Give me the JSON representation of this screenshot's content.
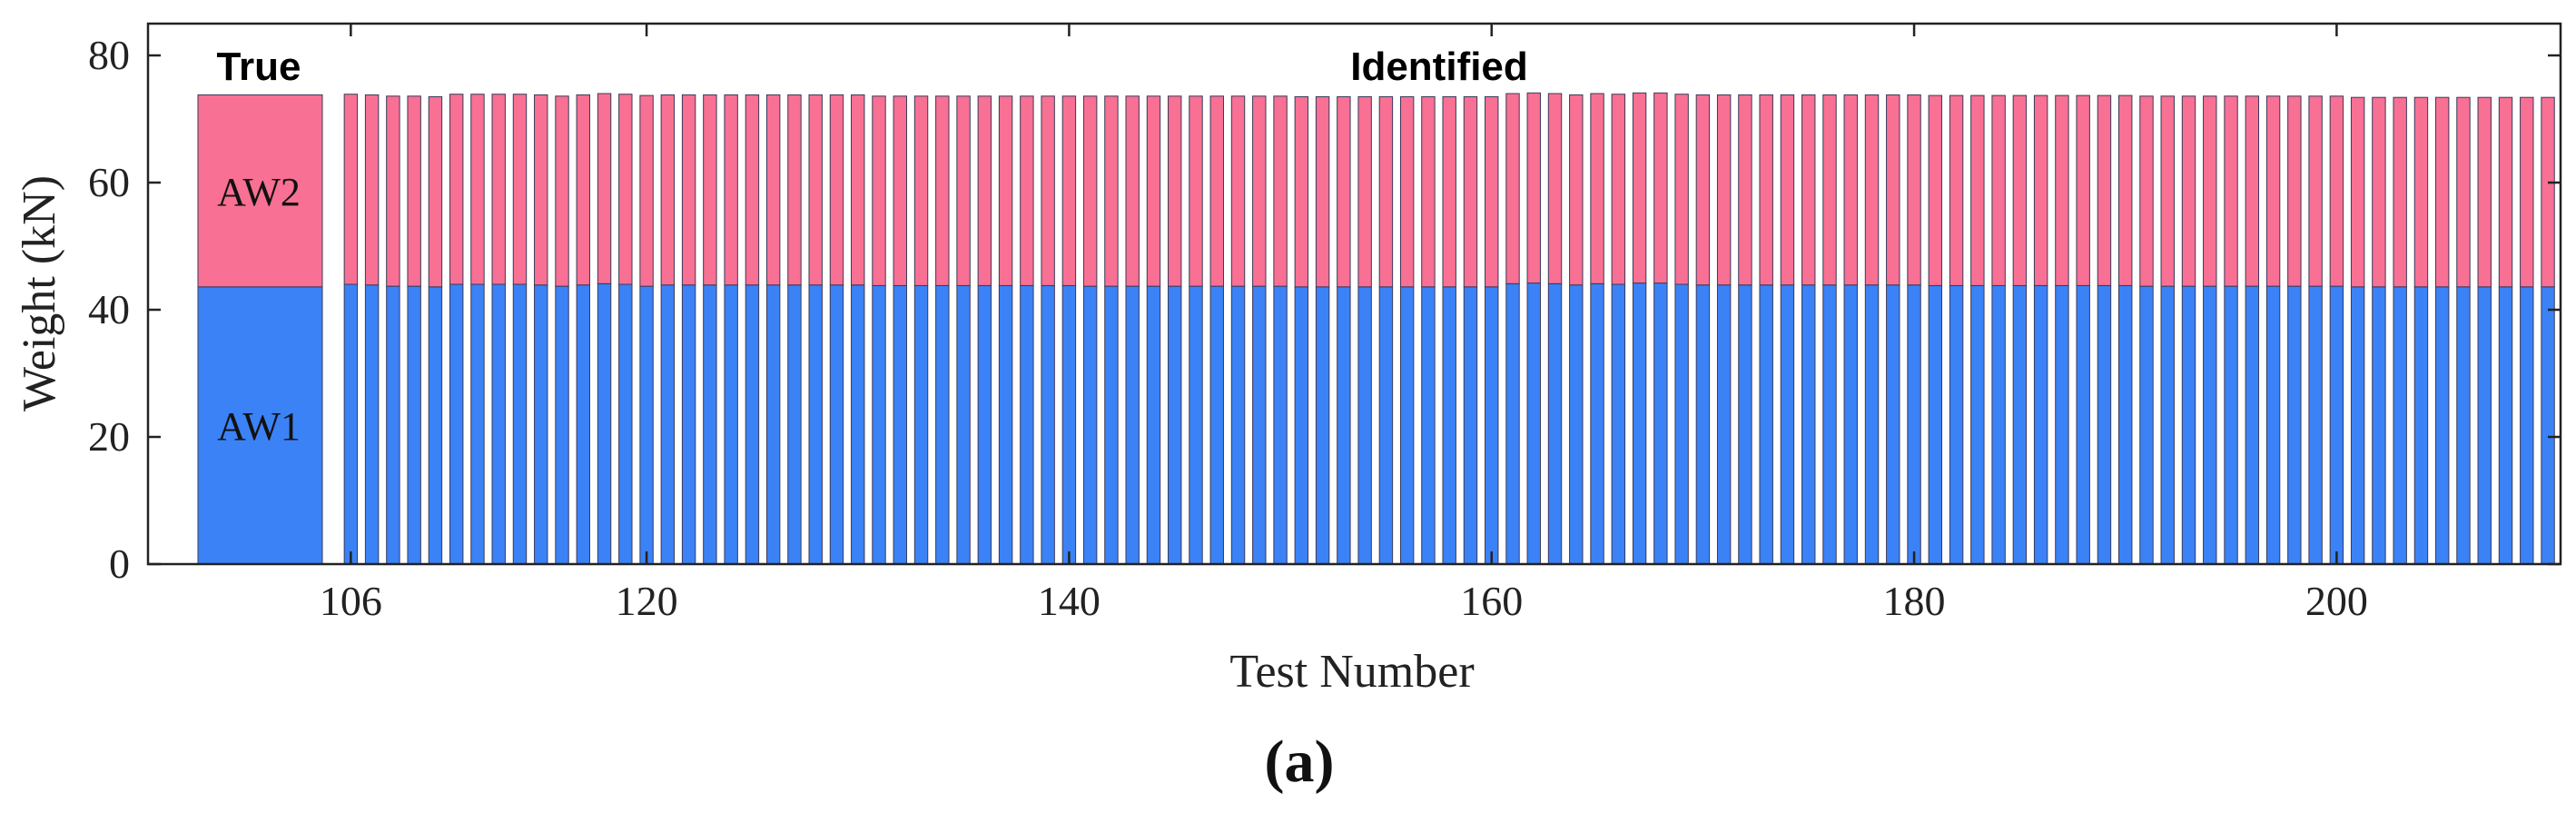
{
  "chart_data": {
    "type": "bar",
    "stacked": true,
    "xlabel": "Test Number",
    "ylabel": "Weight (kN)",
    "caption": "(a)",
    "ylim": [
      0,
      85
    ],
    "yticks": [
      0,
      20,
      40,
      60,
      80
    ],
    "xlim": [
      96.4,
      210.6
    ],
    "xticks": [
      106,
      120,
      140,
      160,
      180,
      200
    ],
    "panel_labels": {
      "true": "True",
      "identified": "Identified"
    },
    "series_labels": {
      "aw1": "AW1",
      "aw2": "AW2"
    },
    "colors": {
      "aw1": "#3b82f6",
      "aw2": "#f87093",
      "edge": "#3a3a5a"
    },
    "true_bar": {
      "aw1": 43.6,
      "total": 73.8
    },
    "identified": {
      "x": [
        106,
        107,
        108,
        109,
        110,
        111,
        112,
        113,
        114,
        115,
        116,
        117,
        118,
        119,
        120,
        121,
        122,
        123,
        124,
        125,
        126,
        127,
        128,
        129,
        130,
        131,
        132,
        133,
        134,
        135,
        136,
        137,
        138,
        139,
        140,
        141,
        142,
        143,
        144,
        145,
        146,
        147,
        148,
        149,
        150,
        151,
        152,
        153,
        154,
        155,
        156,
        157,
        158,
        159,
        160,
        161,
        162,
        163,
        164,
        165,
        166,
        167,
        168,
        169,
        170,
        171,
        172,
        173,
        174,
        175,
        176,
        177,
        178,
        179,
        180,
        181,
        182,
        183,
        184,
        185,
        186,
        187,
        188,
        189,
        190,
        191,
        192,
        193,
        194,
        195,
        196,
        197,
        198,
        199,
        200,
        201,
        202,
        203,
        204,
        205,
        206,
        207,
        208,
        209,
        210
      ],
      "aw1": [
        44.0,
        43.9,
        43.7,
        43.7,
        43.6,
        44.0,
        44.0,
        44.0,
        44.0,
        43.9,
        43.7,
        43.9,
        44.1,
        44.0,
        43.7,
        43.9,
        43.9,
        43.9,
        43.9,
        43.9,
        43.9,
        43.9,
        43.9,
        43.9,
        43.9,
        43.8,
        43.8,
        43.8,
        43.8,
        43.8,
        43.8,
        43.8,
        43.8,
        43.8,
        43.8,
        43.7,
        43.7,
        43.7,
        43.7,
        43.7,
        43.7,
        43.7,
        43.7,
        43.7,
        43.7,
        43.6,
        43.6,
        43.6,
        43.6,
        43.6,
        43.6,
        43.6,
        43.6,
        43.6,
        43.6,
        44.1,
        44.2,
        44.1,
        43.9,
        44.1,
        44.0,
        44.2,
        44.2,
        44.0,
        43.9,
        43.9,
        43.9,
        43.9,
        43.9,
        43.9,
        43.9,
        43.9,
        43.9,
        43.9,
        43.9,
        43.8,
        43.8,
        43.8,
        43.8,
        43.8,
        43.8,
        43.8,
        43.8,
        43.8,
        43.8,
        43.7,
        43.7,
        43.7,
        43.7,
        43.7,
        43.7,
        43.7,
        43.7,
        43.7,
        43.7,
        43.6,
        43.6,
        43.6,
        43.6,
        43.6,
        43.6,
        43.6,
        43.6,
        43.6,
        43.6
      ],
      "total": [
        73.9,
        73.8,
        73.6,
        73.6,
        73.5,
        73.9,
        73.9,
        73.9,
        73.9,
        73.8,
        73.6,
        73.8,
        74.0,
        73.9,
        73.7,
        73.8,
        73.8,
        73.8,
        73.8,
        73.8,
        73.8,
        73.8,
        73.8,
        73.8,
        73.8,
        73.6,
        73.6,
        73.6,
        73.6,
        73.6,
        73.6,
        73.6,
        73.6,
        73.6,
        73.6,
        73.6,
        73.6,
        73.6,
        73.6,
        73.6,
        73.6,
        73.6,
        73.6,
        73.6,
        73.6,
        73.5,
        73.5,
        73.5,
        73.5,
        73.5,
        73.5,
        73.5,
        73.5,
        73.5,
        73.5,
        74.0,
        74.1,
        74.0,
        73.8,
        74.0,
        73.9,
        74.1,
        74.1,
        73.9,
        73.8,
        73.8,
        73.8,
        73.8,
        73.8,
        73.8,
        73.8,
        73.8,
        73.8,
        73.8,
        73.8,
        73.7,
        73.7,
        73.7,
        73.7,
        73.7,
        73.7,
        73.7,
        73.7,
        73.7,
        73.7,
        73.6,
        73.6,
        73.6,
        73.6,
        73.6,
        73.6,
        73.6,
        73.6,
        73.6,
        73.6,
        73.4,
        73.4,
        73.4,
        73.4,
        73.4,
        73.4,
        73.4,
        73.4,
        73.4,
        73.4
      ]
    }
  }
}
